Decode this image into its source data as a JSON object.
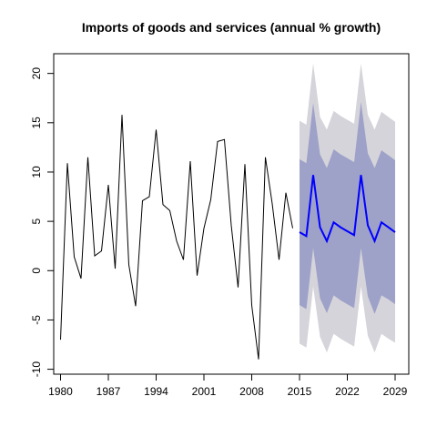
{
  "chart_data": {
    "type": "line",
    "title": "Imports of goods and services (annual % growth)",
    "xlabel": "",
    "ylabel": "",
    "xlim": [
      1979,
      2031
    ],
    "ylim": [
      -10.5,
      22
    ],
    "x_ticks": [
      1980,
      1987,
      1994,
      2001,
      2008,
      2015,
      2022,
      2029
    ],
    "x_tick_labels": [
      "1980",
      "1987",
      "1994",
      "2001",
      "2008",
      "2015",
      "2022",
      "2029"
    ],
    "y_ticks": [
      -10,
      -5,
      0,
      5,
      10,
      15,
      20
    ],
    "y_tick_labels": [
      "-10",
      "-5",
      "0",
      "5",
      "10",
      "15",
      "20"
    ],
    "grid": false,
    "legend": "none",
    "colors": {
      "history": "#000000",
      "forecast": "#0000ff",
      "band80": "#9ea1c8",
      "band95": "#d4d4da"
    },
    "series": [
      {
        "x": [
          1980,
          1981,
          1982,
          1983,
          1984,
          1985,
          1986,
          1987,
          1988,
          1989,
          1990,
          1991,
          1992,
          1993,
          1994,
          1995,
          1996,
          1997,
          1998,
          1999,
          2000,
          2001,
          2002,
          2003,
          2004,
          2005,
          2006,
          2007,
          2008,
          2009,
          2010,
          2011,
          2012,
          2013,
          2014
        ],
        "values": [
          -7.0,
          10.9,
          1.4,
          -0.8,
          11.5,
          1.5,
          2.0,
          8.7,
          0.2,
          15.8,
          0.6,
          -3.6,
          7.1,
          7.5,
          14.3,
          6.7,
          6.1,
          3.0,
          1.1,
          11.1,
          -0.5,
          4.3,
          7.2,
          13.1,
          13.3,
          4.6,
          -1.7,
          10.8,
          -3.5,
          -9.0,
          11.5,
          6.8,
          1.1,
          7.9,
          4.3
        ]
      },
      {
        "x": [
          2015,
          2016,
          2017,
          2018,
          2019,
          2020,
          2021,
          2022,
          2023,
          2024,
          2025,
          2026,
          2027,
          2028,
          2029
        ],
        "values": [
          3.9,
          3.5,
          9.7,
          4.4,
          3.0,
          4.9,
          4.4,
          4.0,
          3.6,
          9.7,
          4.6,
          3.0,
          4.9,
          4.4,
          3.9
        ],
        "lo80": [
          -3.5,
          -3.9,
          2.3,
          -2.8,
          -4.3,
          -2.5,
          -3.0,
          -3.4,
          -3.8,
          2.3,
          -2.6,
          -4.4,
          -2.5,
          -2.9,
          -3.4
        ],
        "hi80": [
          11.3,
          10.9,
          17.0,
          11.8,
          10.4,
          12.3,
          11.8,
          11.4,
          11.0,
          17.1,
          11.9,
          10.4,
          12.2,
          11.7,
          11.2
        ],
        "lo95": [
          -7.4,
          -7.8,
          -1.6,
          -6.7,
          -8.3,
          -6.4,
          -6.9,
          -7.3,
          -7.7,
          -1.6,
          -6.6,
          -8.3,
          -6.4,
          -6.9,
          -7.3
        ],
        "hi95": [
          15.2,
          14.8,
          21.0,
          15.6,
          14.3,
          16.2,
          15.7,
          15.3,
          14.9,
          21.0,
          15.8,
          14.3,
          16.1,
          15.6,
          15.1
        ]
      }
    ]
  }
}
